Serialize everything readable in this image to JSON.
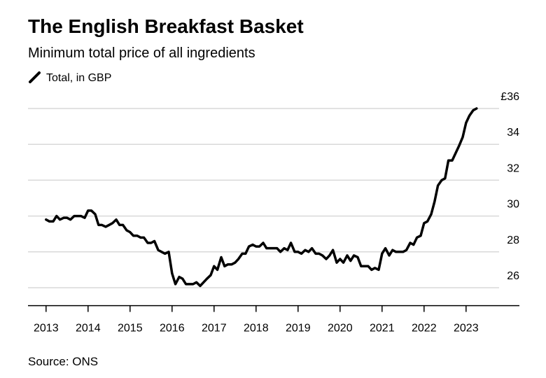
{
  "chart_data": {
    "type": "line",
    "title": "The English Breakfast Basket",
    "subtitle": "Minimum total price of all ingredients",
    "source": "Source: ONS",
    "series": [
      {
        "name": "Total, in GBP",
        "color": "#000000",
        "x": [
          2013,
          2013.08,
          2013.17,
          2013.25,
          2013.33,
          2013.42,
          2013.5,
          2013.58,
          2013.67,
          2013.75,
          2013.83,
          2013.92,
          2014,
          2014.08,
          2014.17,
          2014.25,
          2014.33,
          2014.42,
          2014.5,
          2014.58,
          2014.67,
          2014.75,
          2014.83,
          2014.92,
          2015,
          2015.08,
          2015.17,
          2015.25,
          2015.33,
          2015.42,
          2015.5,
          2015.58,
          2015.67,
          2015.75,
          2015.83,
          2015.92,
          2016,
          2016.08,
          2016.17,
          2016.25,
          2016.33,
          2016.42,
          2016.5,
          2016.58,
          2016.67,
          2016.75,
          2016.83,
          2016.92,
          2017,
          2017.08,
          2017.17,
          2017.25,
          2017.33,
          2017.42,
          2017.5,
          2017.58,
          2017.67,
          2017.75,
          2017.83,
          2017.92,
          2018,
          2018.08,
          2018.17,
          2018.25,
          2018.33,
          2018.42,
          2018.5,
          2018.58,
          2018.67,
          2018.75,
          2018.83,
          2018.92,
          2019,
          2019.08,
          2019.17,
          2019.25,
          2019.33,
          2019.42,
          2019.5,
          2019.58,
          2019.67,
          2019.75,
          2019.83,
          2019.92,
          2020,
          2020.08,
          2020.17,
          2020.25,
          2020.33,
          2020.42,
          2020.5,
          2020.58,
          2020.67,
          2020.75,
          2020.83,
          2020.92,
          2021,
          2021.08,
          2021.17,
          2021.25,
          2021.33,
          2021.42,
          2021.5,
          2021.58,
          2021.67,
          2021.75,
          2021.83,
          2021.92,
          2022,
          2022.08,
          2022.17,
          2022.25,
          2022.33,
          2022.42,
          2022.5,
          2022.58,
          2022.67,
          2022.75,
          2022.83,
          2022.92,
          2023,
          2023.08,
          2023.17,
          2023.25
        ],
        "values": [
          29.8,
          29.7,
          29.7,
          30.0,
          29.8,
          29.9,
          29.9,
          29.8,
          30.0,
          30.0,
          30.0,
          29.9,
          30.3,
          30.3,
          30.1,
          29.5,
          29.5,
          29.4,
          29.5,
          29.6,
          29.8,
          29.5,
          29.5,
          29.2,
          29.1,
          28.9,
          28.9,
          28.8,
          28.8,
          28.5,
          28.5,
          28.6,
          28.1,
          28.0,
          27.9,
          28.0,
          26.8,
          26.2,
          26.6,
          26.5,
          26.2,
          26.2,
          26.2,
          26.3,
          26.1,
          26.3,
          26.5,
          26.7,
          27.2,
          27.0,
          27.7,
          27.2,
          27.3,
          27.3,
          27.4,
          27.6,
          27.9,
          27.9,
          28.3,
          28.4,
          28.3,
          28.3,
          28.5,
          28.2,
          28.2,
          28.2,
          28.2,
          28.0,
          28.2,
          28.1,
          28.5,
          28.0,
          28.0,
          27.9,
          28.1,
          28.0,
          28.2,
          27.9,
          27.9,
          27.8,
          27.6,
          27.8,
          28.1,
          27.4,
          27.6,
          27.4,
          27.8,
          27.5,
          27.8,
          27.7,
          27.2,
          27.2,
          27.2,
          27.0,
          27.1,
          27.0,
          27.9,
          28.2,
          27.8,
          28.1,
          28.0,
          28.0,
          28.0,
          28.1,
          28.5,
          28.4,
          28.8,
          28.9,
          29.6,
          29.7,
          30.1,
          30.8,
          31.7,
          32.0,
          32.1,
          33.1,
          33.1,
          33.5,
          33.9,
          34.4,
          35.2,
          35.6,
          35.9,
          36.0
        ]
      }
    ],
    "xlim": [
      2012.57,
      2024.27
    ],
    "xticks": [
      2013,
      2014,
      2015,
      2016,
      2017,
      2018,
      2019,
      2020,
      2021,
      2022,
      2023
    ],
    "ylim": [
      25,
      36
    ],
    "yticks": [
      26,
      28,
      30,
      32,
      34,
      {
        "value": 36,
        "label": "£36"
      }
    ],
    "grid": true
  }
}
